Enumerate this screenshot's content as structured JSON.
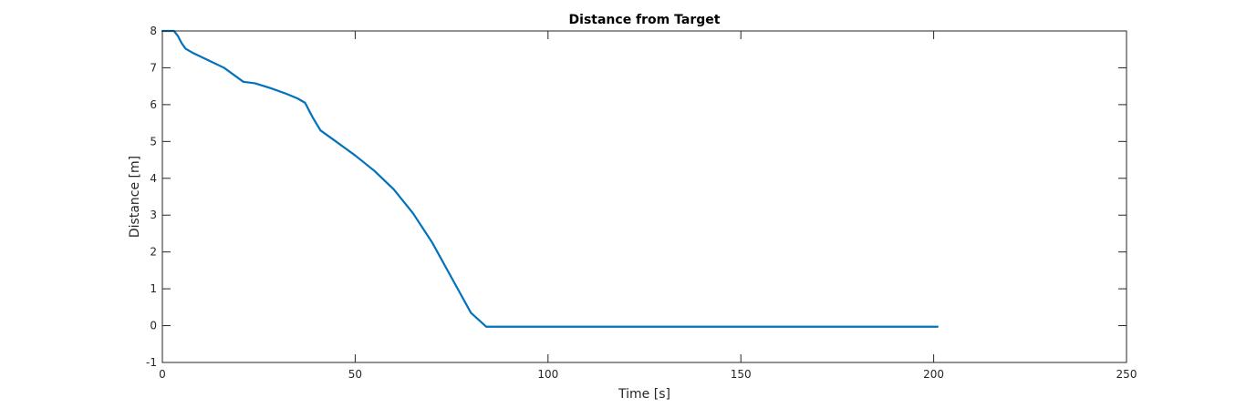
{
  "chart_data": {
    "type": "line",
    "title": "Distance from Target",
    "xlabel": "Time [s]",
    "ylabel": "Distance [m]",
    "xlim": [
      0,
      250
    ],
    "ylim": [
      -1,
      8
    ],
    "xticks": [
      0,
      50,
      100,
      150,
      200,
      250
    ],
    "yticks": [
      -1,
      0,
      1,
      2,
      3,
      4,
      5,
      6,
      7,
      8
    ],
    "xtick_labels": [
      "0",
      "50",
      "100",
      "150",
      "200",
      "250"
    ],
    "ytick_labels": [
      "-1",
      "0",
      "1",
      "2",
      "3",
      "4",
      "5",
      "6",
      "7",
      "8"
    ],
    "grid": false,
    "series": [
      {
        "color": "#0072BD",
        "x": [
          0,
          3,
          4,
          5,
          6,
          8,
          12,
          16,
          21,
          24,
          28,
          32,
          35,
          37,
          39,
          41,
          45,
          50,
          55,
          60,
          65,
          70,
          75,
          80,
          84,
          100,
          150,
          201
        ],
        "y": [
          8,
          8,
          7.87,
          7.67,
          7.52,
          7.4,
          7.2,
          7.0,
          6.62,
          6.58,
          6.45,
          6.3,
          6.17,
          6.05,
          5.65,
          5.3,
          5.0,
          4.62,
          4.2,
          3.7,
          3.05,
          2.25,
          1.3,
          0.35,
          -0.03,
          -0.03,
          -0.03,
          -0.03
        ]
      }
    ]
  }
}
